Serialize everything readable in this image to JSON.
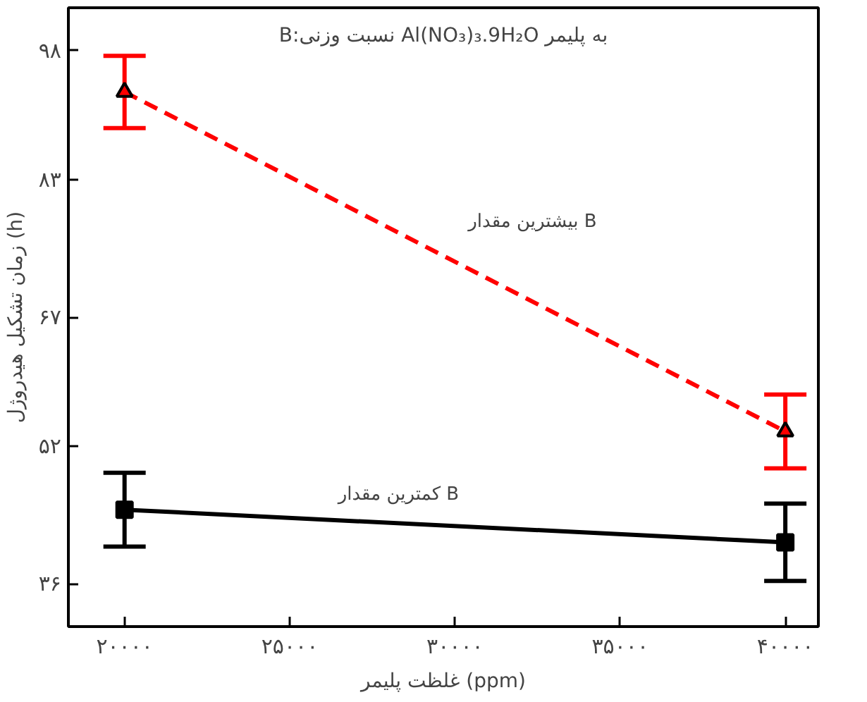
{
  "chart_data": {
    "type": "line",
    "title": "B:نسبت وزنی Al(NO₃)₃.9H₂O به پلیمر",
    "xlabel": "غلظت پلیمر (ppm)",
    "ylabel": "زمان تشکیل هیدروژل (h)",
    "x": [
      20000,
      40000
    ],
    "series": [
      {
        "name": "بیشترین مقدار B",
        "color": "#ff0000",
        "values": [
          93.2,
          53.7
        ],
        "errors": [
          4.2,
          4.3
        ],
        "line_style": "dashed",
        "marker": "triangle"
      },
      {
        "name": "کمترین مقدار B",
        "color": "#000000",
        "values": [
          44.6,
          40.8
        ],
        "errors": [
          4.3,
          4.5
        ],
        "line_style": "solid",
        "marker": "square"
      }
    ],
    "xlim": [
      18300,
      41000
    ],
    "ylim": [
      31,
      103
    ],
    "xticks": [
      {
        "value": 20000,
        "label": "۲۰۰۰۰"
      },
      {
        "value": 25000,
        "label": "۲۵۰۰۰"
      },
      {
        "value": 30000,
        "label": "۳۰۰۰۰"
      },
      {
        "value": 35000,
        "label": "۳۵۰۰۰"
      },
      {
        "value": 40000,
        "label": "۴۰۰۰۰"
      }
    ],
    "yticks": [
      {
        "value": 36,
        "label": "۳۶"
      },
      {
        "value": 52,
        "label": "۵۲"
      },
      {
        "value": 67,
        "label": "۶۷"
      },
      {
        "value": 83,
        "label": "۸۳"
      },
      {
        "value": 98,
        "label": "۹۸"
      }
    ],
    "grid": false
  }
}
